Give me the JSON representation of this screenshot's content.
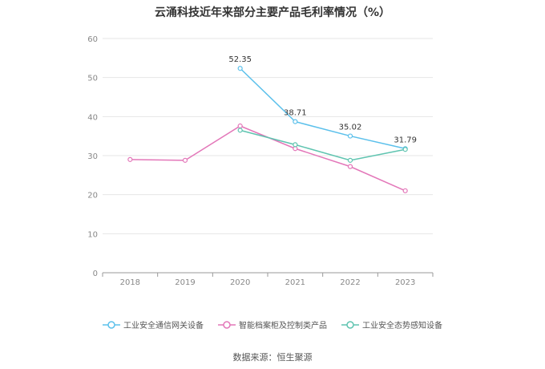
{
  "chart_data": {
    "type": "line",
    "title": "云涌科技近年来部分主要产品毛利率情况（%）",
    "xlabel": "",
    "ylabel": "",
    "x": [
      "2018",
      "2019",
      "2020",
      "2021",
      "2022",
      "2023"
    ],
    "ylim": [
      0,
      60
    ],
    "yticks": [
      0,
      10,
      20,
      30,
      40,
      50,
      60
    ],
    "grid": true,
    "legend_position": "bottom",
    "series": [
      {
        "name": "工业安全通信网关设备",
        "color": "#5bc0eb",
        "values": [
          null,
          null,
          52.35,
          38.71,
          35.02,
          31.79
        ],
        "labels": [
          "",
          "",
          "52.35",
          "38.71",
          "35.02",
          "31.79"
        ]
      },
      {
        "name": "智能档案柜及控制类产品",
        "color": "#e377b9",
        "values": [
          29.0,
          28.8,
          37.6,
          31.8,
          27.2,
          21.0
        ],
        "labels": [
          "",
          "",
          "",
          "",
          "",
          ""
        ]
      },
      {
        "name": "工业安全态势感知设备",
        "color": "#5fc4b0",
        "values": [
          null,
          null,
          36.5,
          32.8,
          28.8,
          31.6
        ],
        "labels": [
          "",
          "",
          "",
          "",
          "",
          ""
        ]
      }
    ]
  },
  "footer": {
    "source": "数据来源：恒生聚源"
  }
}
